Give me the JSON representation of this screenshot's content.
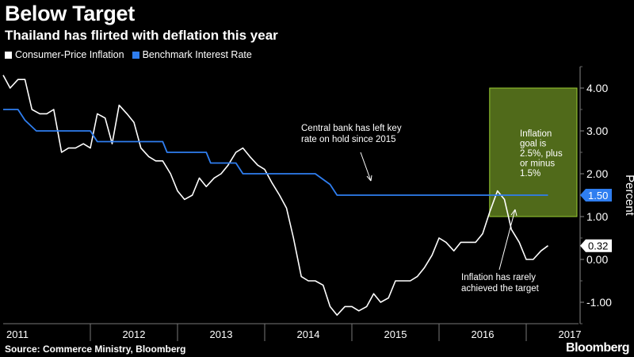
{
  "chart_data": {
    "type": "line",
    "title": "Below Target",
    "subtitle": "Thailand has flirted with deflation this year",
    "ylabel": "Percent",
    "xlabel": "",
    "ylim": [
      -1.5,
      4.5
    ],
    "yticks": [
      "4.00",
      "3.00",
      "2.00",
      "1.00",
      "0.00",
      "-1.00"
    ],
    "ytick_values": [
      4,
      3,
      2,
      1,
      0,
      -1
    ],
    "x_range": [
      2011.0,
      2017.6
    ],
    "xtick_labels": [
      "2011",
      "2012",
      "2013",
      "2014",
      "2015",
      "2016",
      "2017"
    ],
    "legend_position": "top-left",
    "grid": false,
    "series": [
      {
        "name": "Consumer-Price Inflation",
        "color": "#ffffff",
        "points": [
          [
            2011.0,
            4.3
          ],
          [
            2011.08,
            4.0
          ],
          [
            2011.17,
            4.2
          ],
          [
            2011.25,
            4.2
          ],
          [
            2011.33,
            3.5
          ],
          [
            2011.42,
            3.4
          ],
          [
            2011.5,
            3.4
          ],
          [
            2011.58,
            3.5
          ],
          [
            2011.67,
            2.5
          ],
          [
            2011.75,
            2.6
          ],
          [
            2011.83,
            2.6
          ],
          [
            2011.92,
            2.7
          ],
          [
            2012.0,
            2.6
          ],
          [
            2012.08,
            3.4
          ],
          [
            2012.17,
            3.3
          ],
          [
            2012.25,
            2.7
          ],
          [
            2012.33,
            3.6
          ],
          [
            2012.42,
            3.4
          ],
          [
            2012.5,
            3.2
          ],
          [
            2012.58,
            2.6
          ],
          [
            2012.67,
            2.4
          ],
          [
            2012.75,
            2.3
          ],
          [
            2012.83,
            2.3
          ],
          [
            2012.92,
            2.0
          ],
          [
            2013.0,
            1.6
          ],
          [
            2013.08,
            1.4
          ],
          [
            2013.17,
            1.5
          ],
          [
            2013.25,
            1.9
          ],
          [
            2013.33,
            1.7
          ],
          [
            2013.42,
            1.9
          ],
          [
            2013.5,
            2.0
          ],
          [
            2013.58,
            2.2
          ],
          [
            2013.67,
            2.5
          ],
          [
            2013.75,
            2.6
          ],
          [
            2013.83,
            2.4
          ],
          [
            2013.92,
            2.2
          ],
          [
            2014.0,
            2.1
          ],
          [
            2014.08,
            1.8
          ],
          [
            2014.17,
            1.5
          ],
          [
            2014.25,
            1.2
          ],
          [
            2014.33,
            0.5
          ],
          [
            2014.42,
            -0.4
          ],
          [
            2014.5,
            -0.5
          ],
          [
            2014.58,
            -0.5
          ],
          [
            2014.67,
            -0.6
          ],
          [
            2014.75,
            -1.1
          ],
          [
            2014.83,
            -1.3
          ],
          [
            2014.92,
            -1.1
          ],
          [
            2015.0,
            -1.1
          ],
          [
            2015.08,
            -1.2
          ],
          [
            2015.17,
            -1.1
          ],
          [
            2015.25,
            -0.8
          ],
          [
            2015.33,
            -1.0
          ],
          [
            2015.42,
            -0.9
          ],
          [
            2015.5,
            -0.5
          ],
          [
            2015.58,
            -0.5
          ],
          [
            2015.67,
            -0.5
          ],
          [
            2015.75,
            -0.4
          ],
          [
            2015.83,
            -0.2
          ],
          [
            2015.92,
            0.1
          ],
          [
            2016.0,
            0.5
          ],
          [
            2016.08,
            0.4
          ],
          [
            2016.17,
            0.2
          ],
          [
            2016.25,
            0.4
          ],
          [
            2016.33,
            0.4
          ],
          [
            2016.42,
            0.4
          ],
          [
            2016.5,
            0.6
          ],
          [
            2016.58,
            1.1
          ],
          [
            2016.67,
            1.6
          ],
          [
            2016.75,
            1.4
          ],
          [
            2016.83,
            0.7
          ],
          [
            2016.92,
            0.4
          ],
          [
            2017.0,
            0.0
          ],
          [
            2017.08,
            0.0
          ],
          [
            2017.17,
            0.2
          ],
          [
            2017.25,
            0.32
          ]
        ],
        "last_label": "0.32"
      },
      {
        "name": "Benchmark Interest Rate",
        "color": "#2f7ef0",
        "points": [
          [
            2011.0,
            3.5
          ],
          [
            2011.17,
            3.5
          ],
          [
            2011.25,
            3.25
          ],
          [
            2011.38,
            3.0
          ],
          [
            2011.92,
            3.0
          ],
          [
            2012.0,
            3.0
          ],
          [
            2012.08,
            2.75
          ],
          [
            2012.83,
            2.75
          ],
          [
            2012.88,
            2.5
          ],
          [
            2013.33,
            2.5
          ],
          [
            2013.38,
            2.25
          ],
          [
            2013.67,
            2.25
          ],
          [
            2013.75,
            2.0
          ],
          [
            2014.58,
            2.0
          ],
          [
            2014.75,
            1.75
          ],
          [
            2014.83,
            1.5
          ],
          [
            2017.25,
            1.5
          ]
        ],
        "last_label": "1.50"
      }
    ],
    "target_band": {
      "low": 1.0,
      "high": 4.0,
      "x_start": 2016.58,
      "color": "#6b8e23"
    },
    "annotations": {
      "rate": [
        "Central bank has left key",
        "rate on hold since 2015"
      ],
      "target": [
        "Inflation",
        "goal is",
        "2.5%, plus",
        "or minus",
        "1.5%"
      ],
      "inflation": [
        "Inflation has rarely",
        "achieved the target"
      ]
    }
  },
  "footer": {
    "source": "Source: Commerce Ministry, Bloomberg",
    "brand": "Bloomberg"
  }
}
